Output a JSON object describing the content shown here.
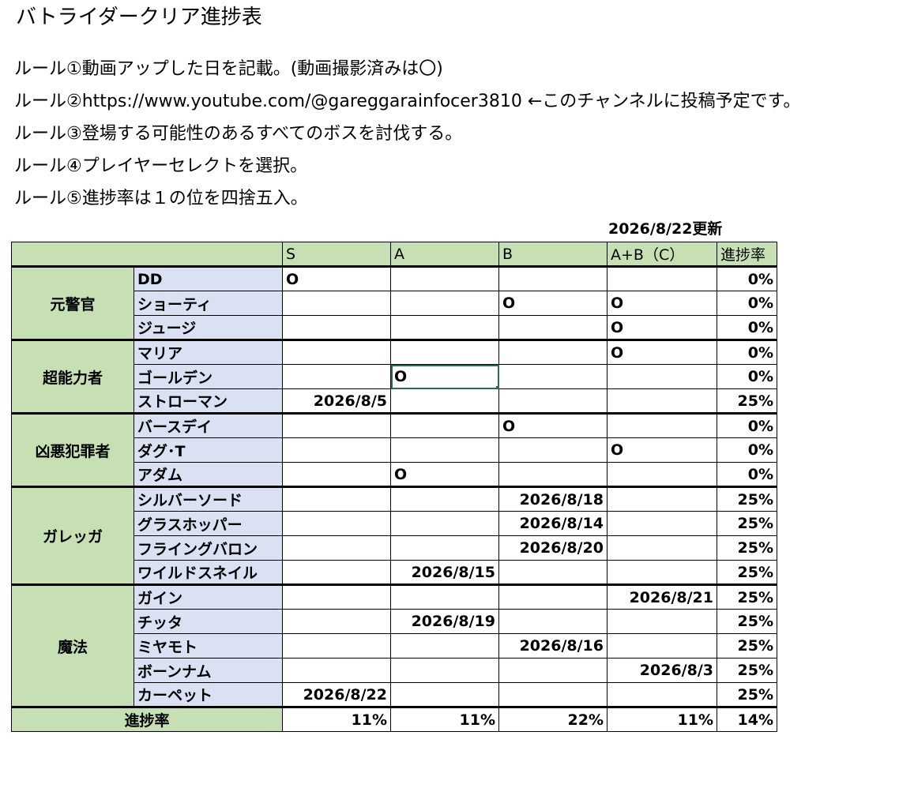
{
  "title": "バトライダークリア進捗表",
  "rules": [
    "ルール①動画アップした日を記載。(動画撮影済みは〇)",
    "ルール②https://www.youtube.com/@gareggarainfocer3810 ←このチャンネルに投稿予定です。",
    "ルール③登場する可能性のあるすべてのボスを討伐する。",
    "ルール④プレイヤーセレクトを選択。",
    "ルール⑤進捗率は１の位を四捨五入。"
  ],
  "updated": "2026/8/22更新",
  "headers": [
    "S",
    "A",
    "B",
    "A+B（C）",
    "進捗率"
  ],
  "groups": [
    {
      "name": "元警官",
      "rows": [
        {
          "boss": "DD",
          "cells": [
            "O",
            "",
            "",
            ""
          ],
          "rate": "0%"
        },
        {
          "boss": "ショーティ",
          "cells": [
            "",
            "",
            "O",
            "O"
          ],
          "rate": "0%"
        },
        {
          "boss": "ジュージ",
          "cells": [
            "",
            "",
            "",
            "O"
          ],
          "rate": "0%"
        }
      ]
    },
    {
      "name": "超能力者",
      "rows": [
        {
          "boss": "マリア",
          "cells": [
            "",
            "",
            "",
            "O"
          ],
          "rate": "0%"
        },
        {
          "boss": "ゴールデン",
          "cells": [
            "",
            "O",
            "",
            ""
          ],
          "rate": "0%"
        },
        {
          "boss": "ストローマン",
          "cells": [
            "2026/8/5",
            "",
            "",
            ""
          ],
          "rate": "25%"
        }
      ]
    },
    {
      "name": "凶悪犯罪者",
      "rows": [
        {
          "boss": "バースデイ",
          "cells": [
            "",
            "",
            "O",
            ""
          ],
          "rate": "0%"
        },
        {
          "boss": "ダグ･T",
          "cells": [
            "",
            "",
            "",
            "O"
          ],
          "rate": "0%"
        },
        {
          "boss": "アダム",
          "cells": [
            "",
            "O",
            "",
            ""
          ],
          "rate": "0%"
        }
      ]
    },
    {
      "name": "ガレッガ",
      "rows": [
        {
          "boss": "シルバーソード",
          "cells": [
            "",
            "",
            "2026/8/18",
            ""
          ],
          "rate": "25%"
        },
        {
          "boss": "グラスホッパー",
          "cells": [
            "",
            "",
            "2026/8/14",
            ""
          ],
          "rate": "25%"
        },
        {
          "boss": "フライングバロン",
          "cells": [
            "",
            "",
            "2026/8/20",
            ""
          ],
          "rate": "25%"
        },
        {
          "boss": "ワイルドスネイル",
          "cells": [
            "",
            "2026/8/15",
            "",
            ""
          ],
          "rate": "25%"
        }
      ]
    },
    {
      "name": "魔法",
      "rows": [
        {
          "boss": "ガイン",
          "cells": [
            "",
            "",
            "",
            "2026/8/21"
          ],
          "rate": "25%"
        },
        {
          "boss": "チッタ",
          "cells": [
            "",
            "2026/8/19",
            "",
            ""
          ],
          "rate": "25%"
        },
        {
          "boss": "ミヤモト",
          "cells": [
            "",
            "",
            "2026/8/16",
            ""
          ],
          "rate": "25%"
        },
        {
          "boss": "ボーンナム",
          "cells": [
            "",
            "",
            "",
            "2026/8/3"
          ],
          "rate": "25%"
        },
        {
          "boss": "カーペット",
          "cells": [
            "2026/8/22",
            "",
            "",
            ""
          ],
          "rate": "25%"
        }
      ]
    }
  ],
  "footer": {
    "label": "進捗率",
    "values": [
      "11%",
      "11%",
      "22%",
      "11%",
      "14%"
    ]
  },
  "colors": {
    "header": "#c6e0b4",
    "boss_name": "#d9e1f2",
    "selection": "#217346"
  }
}
